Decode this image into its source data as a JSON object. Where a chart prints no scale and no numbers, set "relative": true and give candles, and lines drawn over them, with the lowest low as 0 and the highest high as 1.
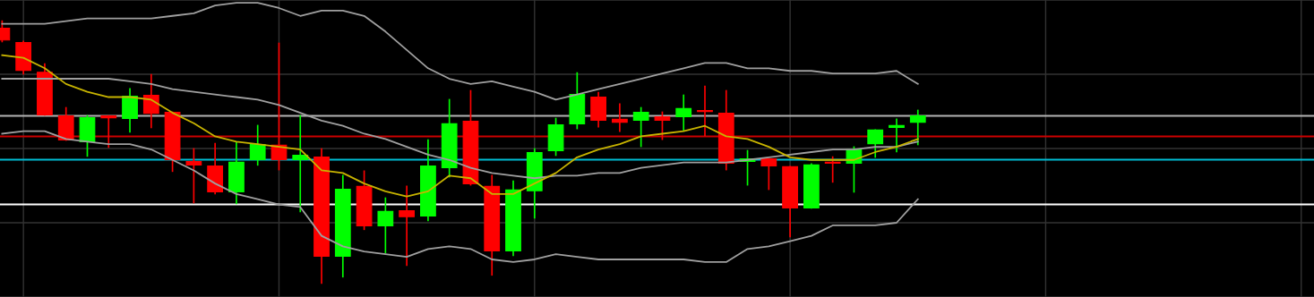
{
  "chart_data": {
    "type": "candlestick",
    "relative": true,
    "tick_labels": false,
    "grid": true,
    "categories": [
      null,
      null,
      null,
      null,
      null,
      null,
      null,
      null,
      null,
      null,
      null,
      null,
      null,
      null,
      null,
      null,
      null,
      null,
      null,
      null,
      null,
      null,
      null,
      null,
      null,
      null,
      null,
      null,
      null,
      null,
      null,
      null,
      null,
      null,
      null,
      null,
      null,
      null,
      null,
      null,
      null,
      null,
      null,
      null
    ],
    "ohlc": [
      [
        0.973,
        1.0,
        0.922,
        0.928
      ],
      [
        0.918,
        0.922,
        0.799,
        0.812
      ],
      [
        0.805,
        0.836,
        0.642,
        0.642
      ],
      [
        0.638,
        0.669,
        0.546,
        0.546
      ],
      [
        0.539,
        0.638,
        0.485,
        0.631
      ],
      [
        0.638,
        0.638,
        0.519,
        0.631
      ],
      [
        0.628,
        0.741,
        0.577,
        0.713
      ],
      [
        0.717,
        0.795,
        0.594,
        0.648
      ],
      [
        0.652,
        0.652,
        0.427,
        0.471
      ],
      [
        0.464,
        0.512,
        0.307,
        0.451
      ],
      [
        0.447,
        0.532,
        0.341,
        0.348
      ],
      [
        0.348,
        0.536,
        0.304,
        0.461
      ],
      [
        0.471,
        0.601,
        0.451,
        0.529
      ],
      [
        0.526,
        0.915,
        0.433,
        0.471
      ],
      [
        0.471,
        0.638,
        0.273,
        0.488
      ],
      [
        0.481,
        0.512,
        0.0,
        0.102
      ],
      [
        0.102,
        0.41,
        0.024,
        0.358
      ],
      [
        0.369,
        0.427,
        0.205,
        0.218
      ],
      [
        0.218,
        0.324,
        0.116,
        0.273
      ],
      [
        0.276,
        0.369,
        0.068,
        0.253
      ],
      [
        0.256,
        0.546,
        0.239,
        0.447
      ],
      [
        0.44,
        0.7,
        0.406,
        0.608
      ],
      [
        0.618,
        0.734,
        0.375,
        0.379
      ],
      [
        0.369,
        0.41,
        0.031,
        0.123
      ],
      [
        0.123,
        0.389,
        0.106,
        0.355
      ],
      [
        0.352,
        0.512,
        0.249,
        0.498
      ],
      [
        0.505,
        0.628,
        0.488,
        0.604
      ],
      [
        0.608,
        0.802,
        0.59,
        0.72
      ],
      [
        0.71,
        0.727,
        0.597,
        0.621
      ],
      [
        0.625,
        0.683,
        0.58,
        0.614
      ],
      [
        0.621,
        0.669,
        0.522,
        0.652
      ],
      [
        0.635,
        0.652,
        0.549,
        0.621
      ],
      [
        0.635,
        0.717,
        0.584,
        0.666
      ],
      [
        0.659,
        0.751,
        0.563,
        0.655
      ],
      [
        0.648,
        0.734,
        0.433,
        0.457
      ],
      [
        0.464,
        0.505,
        0.375,
        0.474
      ],
      [
        0.474,
        0.474,
        0.358,
        0.447
      ],
      [
        0.444,
        0.444,
        0.177,
        0.287
      ],
      [
        0.287,
        0.454,
        0.287,
        0.451
      ],
      [
        0.461,
        0.481,
        0.386,
        0.457
      ],
      [
        0.457,
        0.519,
        0.348,
        0.509
      ],
      [
        0.532,
        0.584,
        0.481,
        0.584
      ],
      [
        0.594,
        0.625,
        0.502,
        0.601
      ],
      [
        0.614,
        0.659,
        0.529,
        0.638
      ]
    ],
    "colors": [
      "#ff0000",
      "#ff0000",
      "#ff0000",
      "#ff0000",
      "#00ff00",
      "#ff0000",
      "#00ff00",
      "#ff0000",
      "#ff0000",
      "#ff0000",
      "#ff0000",
      "#00ff00",
      "#00ff00",
      "#ff0000",
      "#00ff00",
      "#ff0000",
      "#00ff00",
      "#ff0000",
      "#00ff00",
      "#ff0000",
      "#00ff00",
      "#00ff00",
      "#ff0000",
      "#ff0000",
      "#00ff00",
      "#00ff00",
      "#00ff00",
      "#00ff00",
      "#ff0000",
      "#ff0000",
      "#00ff00",
      "#ff0000",
      "#00ff00",
      "#ff0000",
      "#ff0000",
      "#00ff00",
      "#ff0000",
      "#ff0000",
      "#00ff00",
      "#ff0000",
      "#00ff00",
      "#00ff00",
      "#00ff00",
      "#00ff00"
    ],
    "series": [
      {
        "type": "line",
        "color": "#a0a0a0",
        "values": [
          0.99,
          0.99,
          0.99,
          1.0,
          1.01,
          1.01,
          1.01,
          1.01,
          1.02,
          1.03,
          1.06,
          1.07,
          1.07,
          1.05,
          1.02,
          1.04,
          1.04,
          1.02,
          0.96,
          0.89,
          0.82,
          0.78,
          0.76,
          0.77,
          0.75,
          0.73,
          0.7,
          0.72,
          0.74,
          0.76,
          0.78,
          0.8,
          0.82,
          0.84,
          0.84,
          0.82,
          0.82,
          0.81,
          0.81,
          0.8,
          0.8,
          0.8,
          0.81,
          0.76
        ]
      },
      {
        "type": "line",
        "color": "#a0a0a0",
        "values": [
          0.78,
          0.78,
          0.78,
          0.78,
          0.78,
          0.78,
          0.77,
          0.76,
          0.74,
          0.73,
          0.72,
          0.71,
          0.7,
          0.68,
          0.65,
          0.62,
          0.6,
          0.57,
          0.55,
          0.52,
          0.49,
          0.47,
          0.44,
          0.42,
          0.41,
          0.4,
          0.41,
          0.41,
          0.42,
          0.42,
          0.44,
          0.45,
          0.46,
          0.46,
          0.46,
          0.47,
          0.48,
          0.49,
          0.5,
          0.51,
          0.51,
          0.52,
          0.52,
          0.54
        ]
      },
      {
        "type": "line",
        "color": "#a0a0a0",
        "values": [
          0.57,
          0.58,
          0.58,
          0.55,
          0.54,
          0.53,
          0.53,
          0.51,
          0.47,
          0.43,
          0.38,
          0.34,
          0.32,
          0.3,
          0.29,
          0.18,
          0.14,
          0.12,
          0.11,
          0.1,
          0.13,
          0.14,
          0.13,
          0.09,
          0.08,
          0.09,
          0.11,
          0.1,
          0.09,
          0.09,
          0.09,
          0.09,
          0.09,
          0.08,
          0.08,
          0.13,
          0.14,
          0.16,
          0.18,
          0.22,
          0.22,
          0.22,
          0.23,
          0.32
        ]
      },
      {
        "type": "line",
        "color": "#c8b400",
        "values": [
          0.87,
          0.86,
          0.82,
          0.76,
          0.73,
          0.71,
          0.71,
          0.7,
          0.65,
          0.61,
          0.56,
          0.54,
          0.53,
          0.52,
          0.51,
          0.43,
          0.42,
          0.38,
          0.35,
          0.33,
          0.35,
          0.41,
          0.4,
          0.34,
          0.34,
          0.38,
          0.42,
          0.48,
          0.51,
          0.53,
          0.56,
          0.57,
          0.58,
          0.6,
          0.56,
          0.55,
          0.52,
          0.48,
          0.47,
          0.47,
          0.47,
          0.5,
          0.52,
          0.55
        ]
      }
    ],
    "ref_lines": [
      {
        "axis": "y",
        "value": 0.638,
        "color": "#b4b4b4"
      },
      {
        "axis": "y",
        "value": 0.56,
        "color": "#cc0000"
      },
      {
        "axis": "y",
        "value": 0.471,
        "color": "#00bcd4"
      },
      {
        "axis": "y",
        "value": 0.3,
        "color": "#ffffff"
      }
    ]
  }
}
